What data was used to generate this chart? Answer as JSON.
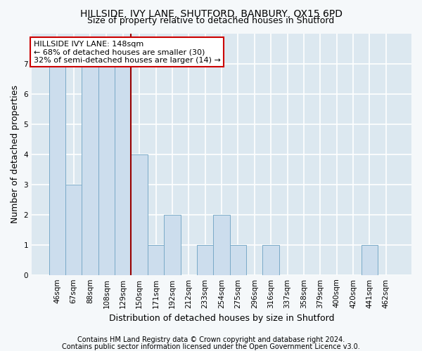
{
  "title": "HILLSIDE, IVY LANE, SHUTFORD, BANBURY, OX15 6PD",
  "subtitle": "Size of property relative to detached houses in Shutford",
  "xlabel": "Distribution of detached houses by size in Shutford",
  "ylabel": "Number of detached properties",
  "categories": [
    "46sqm",
    "67sqm",
    "88sqm",
    "108sqm",
    "129sqm",
    "150sqm",
    "171sqm",
    "192sqm",
    "212sqm",
    "233sqm",
    "254sqm",
    "275sqm",
    "296sqm",
    "316sqm",
    "337sqm",
    "358sqm",
    "379sqm",
    "400sqm",
    "420sqm",
    "441sqm",
    "462sqm"
  ],
  "values": [
    7,
    3,
    7,
    7,
    7,
    4,
    1,
    2,
    0,
    1,
    2,
    1,
    0,
    1,
    0,
    0,
    0,
    0,
    0,
    1,
    0
  ],
  "bar_color": "#ccdded",
  "bar_edge_color": "#7aaac8",
  "property_line_x": 4.5,
  "property_line_color": "#990000",
  "annotation_line1": "HILLSIDE IVY LANE: 148sqm",
  "annotation_line2": "← 68% of detached houses are smaller (30)",
  "annotation_line3": "32% of semi-detached houses are larger (14) →",
  "annotation_box_color": "#ffffff",
  "annotation_box_edge_color": "#cc0000",
  "ylim": [
    0,
    8
  ],
  "yticks": [
    0,
    1,
    2,
    3,
    4,
    5,
    6,
    7
  ],
  "footnote1": "Contains HM Land Registry data © Crown copyright and database right 2024.",
  "footnote2": "Contains public sector information licensed under the Open Government Licence v3.0.",
  "plot_bg_color": "#dce8f0",
  "fig_bg_color": "#f5f8fa",
  "grid_color": "#ffffff",
  "title_fontsize": 10,
  "subtitle_fontsize": 9,
  "tick_fontsize": 7.5,
  "ylabel_fontsize": 9,
  "xlabel_fontsize": 9,
  "annotation_fontsize": 8,
  "footnote_fontsize": 7
}
